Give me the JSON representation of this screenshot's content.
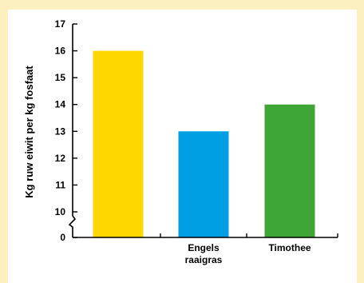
{
  "chart_data": {
    "type": "bar",
    "title": "",
    "xlabel": "",
    "ylabel": "Kg ruw eiwit per kg fosfaat",
    "categories": [
      [
        "",
        ""
      ],
      [
        "Engels",
        "raaigras"
      ],
      [
        "Timothee",
        ""
      ]
    ],
    "values": [
      16,
      13,
      14
    ],
    "ylim": [
      10,
      17
    ],
    "y_axis_break": true,
    "y_ticks": [
      "0",
      "10",
      "11",
      "12",
      "13",
      "14",
      "15",
      "16",
      "17"
    ],
    "grid": false,
    "bar_colors": [
      "#ffd700",
      "#009fe3",
      "#3fa535"
    ]
  },
  "colors": {
    "outer_background": "#fdf0c0",
    "panel_background": "#ffffff"
  }
}
